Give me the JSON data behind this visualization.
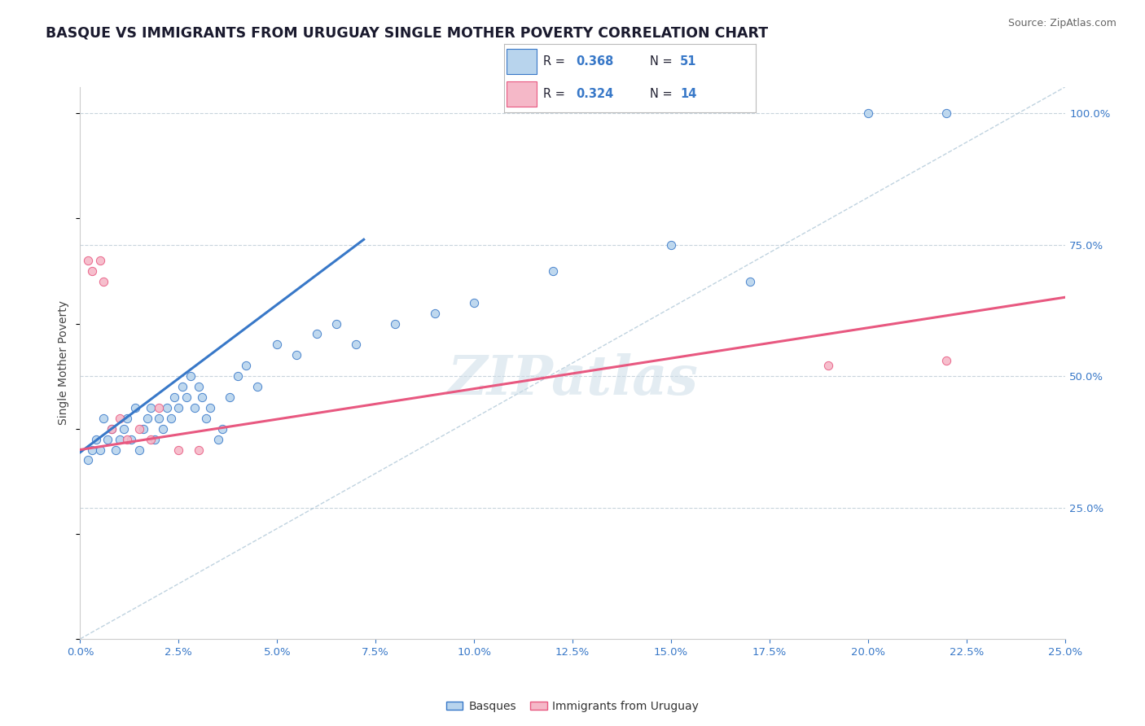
{
  "title": "BASQUE VS IMMIGRANTS FROM URUGUAY SINGLE MOTHER POVERTY CORRELATION CHART",
  "source": "Source: ZipAtlas.com",
  "ylabel": "Single Mother Poverty",
  "ylabel_right_ticks": [
    "100.0%",
    "75.0%",
    "50.0%",
    "25.0%"
  ],
  "legend_label1": "Basques",
  "legend_label2": "Immigrants from Uruguay",
  "basque_color": "#b8d4ed",
  "uruguay_color": "#f5b8c8",
  "trend_basque_color": "#3878c8",
  "trend_uruguay_color": "#e85880",
  "diagonal_color": "#b0c8d8",
  "r_value_color": "#3878c8",
  "basque_scatter_x": [
    0.002,
    0.003,
    0.004,
    0.005,
    0.006,
    0.007,
    0.008,
    0.009,
    0.01,
    0.011,
    0.012,
    0.013,
    0.014,
    0.015,
    0.016,
    0.017,
    0.018,
    0.019,
    0.02,
    0.021,
    0.022,
    0.023,
    0.024,
    0.025,
    0.026,
    0.027,
    0.028,
    0.029,
    0.03,
    0.031,
    0.032,
    0.033,
    0.035,
    0.036,
    0.038,
    0.04,
    0.042,
    0.045,
    0.05,
    0.055,
    0.06,
    0.065,
    0.07,
    0.08,
    0.09,
    0.1,
    0.12,
    0.15,
    0.17,
    0.2,
    0.22
  ],
  "basque_scatter_y": [
    0.34,
    0.36,
    0.38,
    0.36,
    0.42,
    0.38,
    0.4,
    0.36,
    0.38,
    0.4,
    0.42,
    0.38,
    0.44,
    0.36,
    0.4,
    0.42,
    0.44,
    0.38,
    0.42,
    0.4,
    0.44,
    0.42,
    0.46,
    0.44,
    0.48,
    0.46,
    0.5,
    0.44,
    0.48,
    0.46,
    0.42,
    0.44,
    0.38,
    0.4,
    0.46,
    0.5,
    0.52,
    0.48,
    0.56,
    0.54,
    0.58,
    0.6,
    0.56,
    0.6,
    0.62,
    0.64,
    0.7,
    0.75,
    0.68,
    1.0,
    1.0
  ],
  "uruguay_scatter_x": [
    0.002,
    0.003,
    0.005,
    0.006,
    0.008,
    0.01,
    0.012,
    0.015,
    0.018,
    0.02,
    0.025,
    0.03,
    0.19,
    0.22
  ],
  "uruguay_scatter_y": [
    0.72,
    0.7,
    0.72,
    0.68,
    0.4,
    0.42,
    0.38,
    0.4,
    0.38,
    0.44,
    0.36,
    0.36,
    0.52,
    0.53
  ],
  "trend_basque_x0": 0.0,
  "trend_basque_x1": 0.072,
  "trend_basque_y0": 0.355,
  "trend_basque_y1": 0.76,
  "trend_uruguay_x0": 0.0,
  "trend_uruguay_x1": 0.25,
  "trend_uruguay_y0": 0.36,
  "trend_uruguay_y1": 0.65,
  "xmin": 0.0,
  "xmax": 0.25,
  "ymin": 0.0,
  "ymax": 1.05,
  "watermark": "ZIPatlas",
  "background_color": "#ffffff",
  "grid_color": "#c8d4dc"
}
